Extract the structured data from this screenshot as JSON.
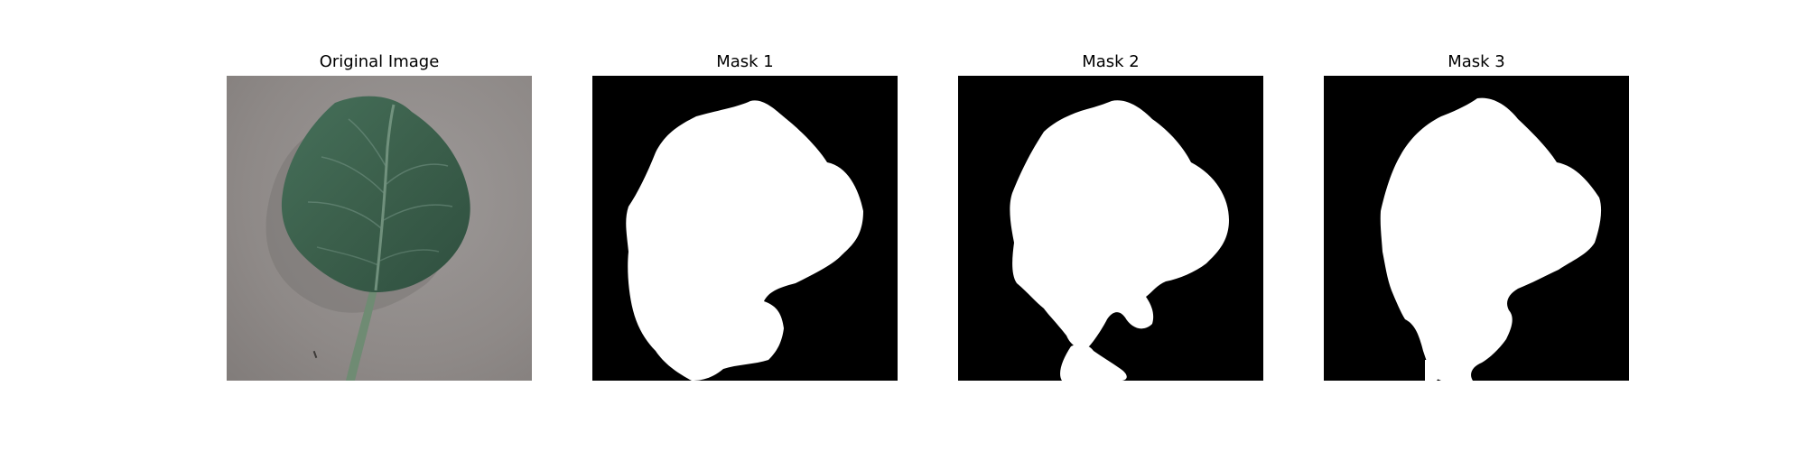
{
  "figure": {
    "panels": [
      {
        "title": "Original Image"
      },
      {
        "title": "Mask 1"
      },
      {
        "title": "Mask 2"
      },
      {
        "title": "Mask 3"
      }
    ]
  },
  "colors": {
    "mask_background": "#000000",
    "mask_foreground": "#ffffff",
    "table_surface": "#8f8a88",
    "leaf": "#3d5f4b",
    "leaf_vein": "#7e9e8a",
    "stem": "#6f8b73"
  }
}
